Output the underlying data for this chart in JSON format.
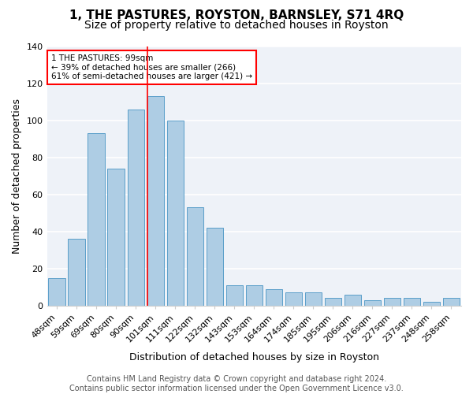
{
  "title": "1, THE PASTURES, ROYSTON, BARNSLEY, S71 4RQ",
  "subtitle": "Size of property relative to detached houses in Royston",
  "xlabel": "Distribution of detached houses by size in Royston",
  "ylabel": "Number of detached properties",
  "categories": [
    "48sqm",
    "59sqm",
    "69sqm",
    "80sqm",
    "90sqm",
    "101sqm",
    "111sqm",
    "122sqm",
    "132sqm",
    "143sqm",
    "153sqm",
    "164sqm",
    "174sqm",
    "185sqm",
    "195sqm",
    "206sqm",
    "216sqm",
    "227sqm",
    "237sqm",
    "248sqm",
    "258sqm"
  ],
  "values": [
    15,
    36,
    93,
    74,
    106,
    113,
    100,
    53,
    42,
    11,
    11,
    9,
    7,
    7,
    4,
    6,
    3,
    4,
    4,
    2,
    4
  ],
  "bar_color": "#aecde4",
  "bar_edge_color": "#5a9ec9",
  "annotation_box_text": "1 THE PASTURES: 99sqm\n← 39% of detached houses are smaller (266)\n61% of semi-detached houses are larger (421) →",
  "annotation_box_color": "white",
  "annotation_box_edge_color": "red",
  "vline_color": "red",
  "vline_x_index": 5,
  "ylim": [
    0,
    140
  ],
  "yticks": [
    0,
    20,
    40,
    60,
    80,
    100,
    120,
    140
  ],
  "bg_color": "#eef2f8",
  "grid_color": "white",
  "footer_text": "Contains HM Land Registry data © Crown copyright and database right 2024.\nContains public sector information licensed under the Open Government Licence v3.0.",
  "title_fontsize": 11,
  "subtitle_fontsize": 10,
  "xlabel_fontsize": 9,
  "ylabel_fontsize": 9,
  "tick_fontsize": 8,
  "footer_fontsize": 7
}
